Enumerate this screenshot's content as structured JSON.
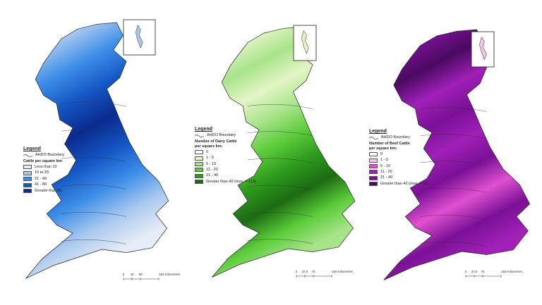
{
  "panels": [
    {
      "legend": {
        "title": "Legend",
        "boundary": "AHDO Boundary",
        "heading": "Cattle per square km:",
        "entries": [
          {
            "label": "Less than 10",
            "color": "#e6edf6"
          },
          {
            "label": "10 to 20",
            "color": "#a9c8ef"
          },
          {
            "label": "21 - 40",
            "color": "#3d8ee8"
          },
          {
            "label": "41 - 80",
            "color": "#1456c4"
          },
          {
            "label": "Greater than 80",
            "color": "#0a2a8f"
          }
        ]
      },
      "scale": [
        "0",
        "40",
        "80",
        "160 Kilometres"
      ]
    },
    {
      "legend": {
        "title": "Legend",
        "boundary": "AHDO Boundary",
        "heading": "Number of Dairy Cattle per square km:",
        "entries": [
          {
            "label": "0",
            "color": "#ffffff"
          },
          {
            "label": "1 - 5",
            "color": "#e3f5c6"
          },
          {
            "label": "6 - 10",
            "color": "#a8e38a"
          },
          {
            "label": "11 - 20",
            "color": "#5ccc3a"
          },
          {
            "label": "21 - 40",
            "color": "#2e9a1e"
          },
          {
            "label": "Greater than 40 (max. = 113)",
            "color": "#1c6b12"
          }
        ]
      },
      "scale": [
        "0",
        "37.5",
        "75",
        "150 Kilometres"
      ]
    },
    {
      "legend": {
        "title": "Legend",
        "boundary": "AHDO Boundary",
        "heading": "Number of Beef Cattle per square km:",
        "entries": [
          {
            "label": "0",
            "color": "#ffffff"
          },
          {
            "label": "1 - 5",
            "color": "#f5c4e8"
          },
          {
            "label": "6 - 10",
            "color": "#e050d0"
          },
          {
            "label": "11 - 20",
            "color": "#a020b8"
          },
          {
            "label": "21 - 40",
            "color": "#7a1096"
          },
          {
            "label": "Greater than 40 (max. = 92)",
            "color": "#4a0a60"
          }
        ]
      },
      "scale": [
        "0",
        "37.5",
        "75",
        "150 Kilometres"
      ]
    }
  ]
}
